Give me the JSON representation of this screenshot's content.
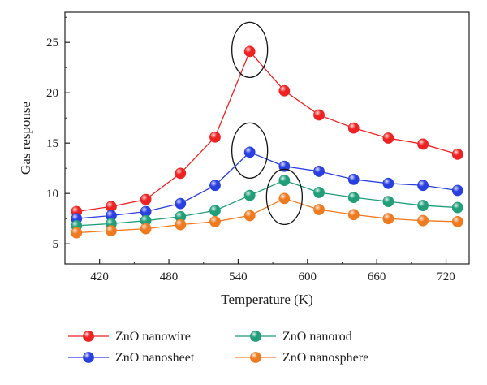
{
  "chart_data": {
    "type": "line",
    "xlabel": "Temperature (K)",
    "ylabel": "Gas response",
    "xlim": [
      390,
      740
    ],
    "ylim": [
      3,
      28
    ],
    "xticks": [
      420,
      480,
      540,
      600,
      660,
      720
    ],
    "yticks": [
      5,
      10,
      15,
      20,
      25
    ],
    "x": [
      400,
      430,
      460,
      490,
      520,
      550,
      580,
      610,
      640,
      670,
      700,
      730
    ],
    "grid": false,
    "legend_position": "bottom",
    "series": [
      {
        "name": "ZnO nanowire",
        "color": "#ee2222",
        "values": [
          8.2,
          8.7,
          9.4,
          12.0,
          15.6,
          24.1,
          20.2,
          17.8,
          16.5,
          15.5,
          14.9,
          13.9
        ]
      },
      {
        "name": "ZnO nanosheet",
        "color": "#2a3fe0",
        "values": [
          7.5,
          7.8,
          8.2,
          9.0,
          10.8,
          14.1,
          12.7,
          12.2,
          11.4,
          11.0,
          10.8,
          10.3
        ]
      },
      {
        "name": "ZnO nanorod",
        "color": "#1f9e78",
        "values": [
          6.8,
          7.0,
          7.3,
          7.7,
          8.3,
          9.8,
          11.3,
          10.1,
          9.6,
          9.2,
          8.8,
          8.6
        ]
      },
      {
        "name": "ZnO nanosphere",
        "color": "#f07a20",
        "values": [
          6.1,
          6.3,
          6.5,
          6.9,
          7.2,
          7.8,
          9.5,
          8.4,
          7.9,
          7.5,
          7.3,
          7.2
        ]
      }
    ],
    "highlight_ellipses": [
      {
        "series": "ZnO nanowire",
        "x": 550
      },
      {
        "series": "ZnO nanosheet",
        "x": 550
      },
      {
        "series": "ZnO nanosphere",
        "x": 580
      }
    ]
  }
}
